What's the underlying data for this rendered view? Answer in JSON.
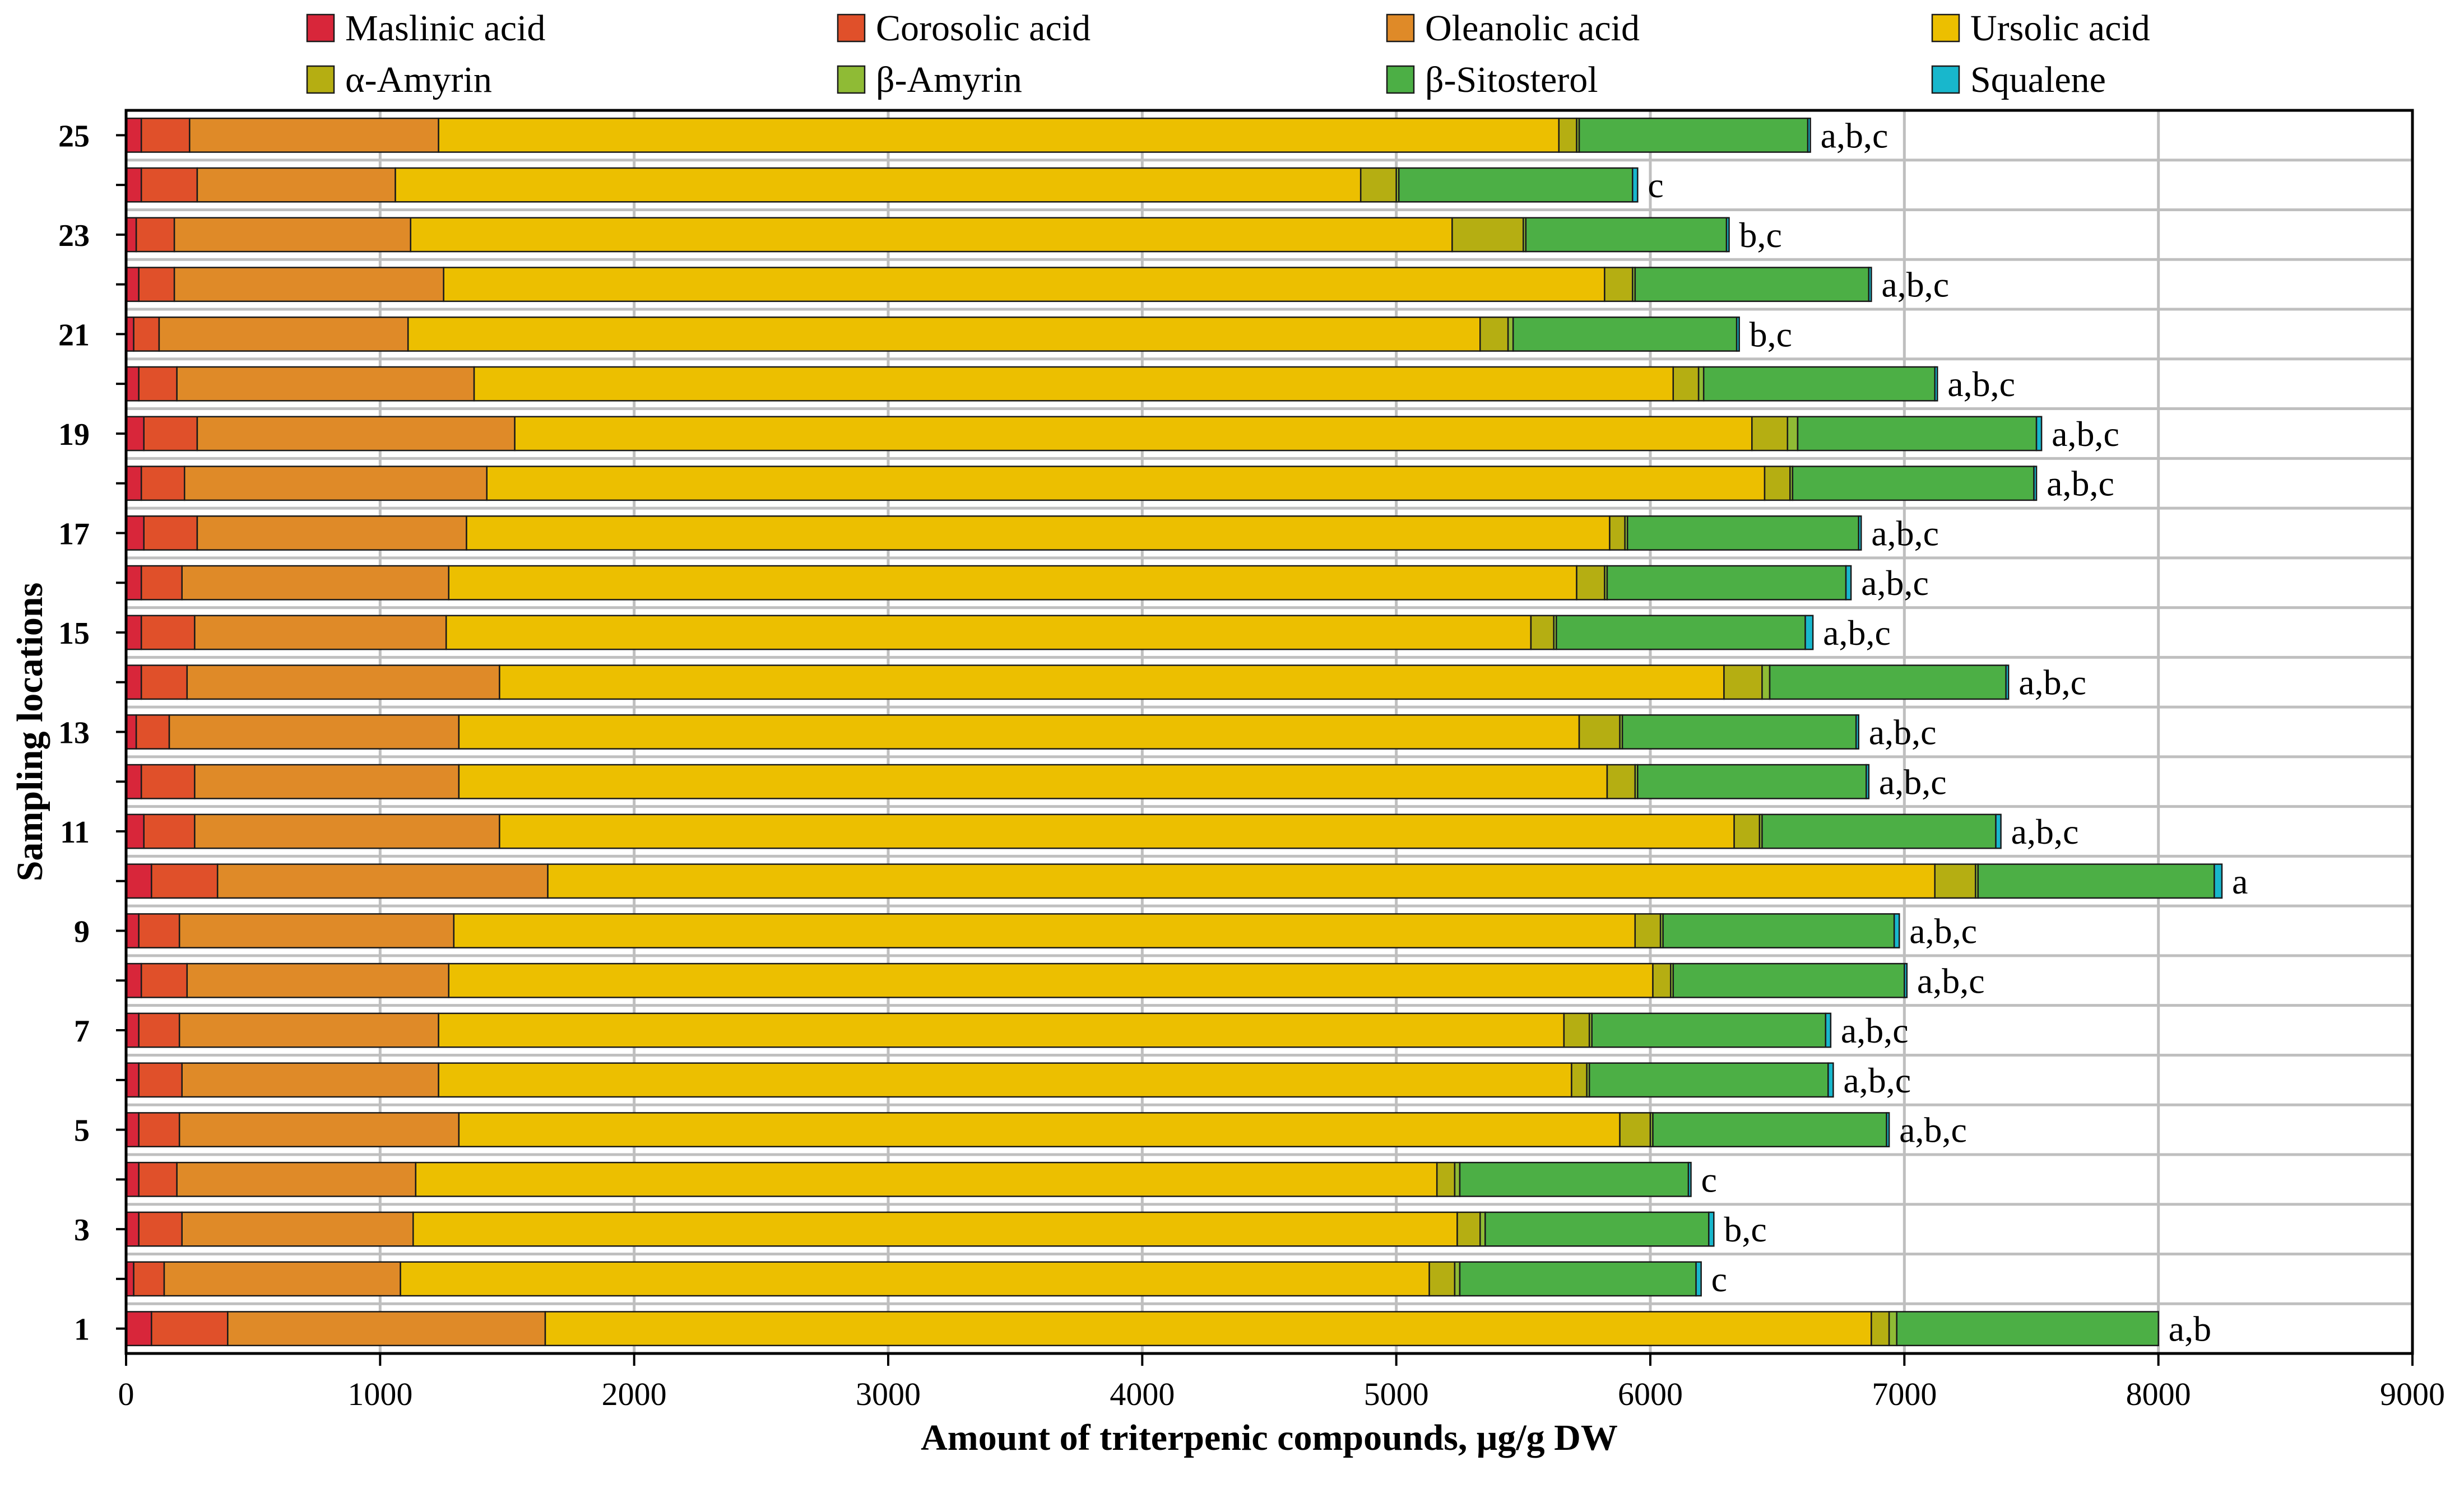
{
  "chart_data": {
    "type": "bar",
    "orientation": "horizontal",
    "stacked": true,
    "xlabel": "Amount of triterpenic compounds, μg/g DW",
    "ylabel": "Sampling locations",
    "xlim": [
      0,
      9000
    ],
    "x_ticks": [
      "0",
      "1000",
      "2000",
      "3000",
      "4000",
      "5000",
      "6000",
      "7000",
      "8000",
      "9000"
    ],
    "grid": "vertical",
    "legend_position": "top",
    "categories": [
      "1",
      "2",
      "3",
      "4",
      "5",
      "6",
      "7",
      "8",
      "9",
      "10",
      "11",
      "12",
      "13",
      "14",
      "15",
      "16",
      "17",
      "18",
      "19",
      "20",
      "21",
      "22",
      "23",
      "24",
      "25"
    ],
    "y_tick_labels": [
      "1",
      "",
      "3",
      "",
      "5",
      "",
      "7",
      "",
      "9",
      "",
      "11",
      "",
      "13",
      "",
      "15",
      "",
      "17",
      "",
      "19",
      "",
      "21",
      "",
      "23",
      "",
      "25"
    ],
    "significance_labels": [
      "a,b",
      "c",
      "b,c",
      "c",
      "a,b,c",
      "a,b,c",
      "a,b,c",
      "a,b,c",
      "a,b,c",
      "a",
      "a,b,c",
      "a,b,c",
      "a,b,c",
      "a,b,c",
      "a,b,c",
      "a,b,c",
      "a,b,c",
      "a,b,c",
      "a,b,c",
      "a,b,c",
      "b,c",
      "a,b,c",
      "b,c",
      "c",
      "a,b,c"
    ],
    "series": [
      {
        "name": "Maslinic acid",
        "color": "#d8263a",
        "values": [
          100,
          30,
          50,
          50,
          50,
          50,
          50,
          60,
          50,
          100,
          70,
          60,
          40,
          60,
          60,
          60,
          70,
          60,
          70,
          50,
          30,
          50,
          40,
          60,
          60
        ]
      },
      {
        "name": "Corosolic acid",
        "color": "#e0502a",
        "values": [
          300,
          120,
          170,
          150,
          160,
          170,
          160,
          180,
          160,
          260,
          200,
          210,
          130,
          180,
          210,
          160,
          210,
          170,
          210,
          150,
          100,
          140,
          150,
          220,
          190
        ]
      },
      {
        "name": "Oleanolic acid",
        "color": "#df8a28",
        "values": [
          1250,
          930,
          910,
          940,
          1100,
          1010,
          1020,
          1030,
          1080,
          1300,
          1200,
          1040,
          1140,
          1230,
          990,
          1050,
          1060,
          1190,
          1250,
          1170,
          980,
          1060,
          930,
          780,
          980
        ]
      },
      {
        "name": "Ursolic acid",
        "color": "#ecbf00",
        "values": [
          5220,
          4050,
          4110,
          4020,
          4570,
          4460,
          4430,
          4740,
          4650,
          5460,
          4860,
          4520,
          4410,
          4820,
          4270,
          4440,
          4500,
          5030,
          4870,
          4720,
          4220,
          4570,
          4100,
          3800,
          4410
        ]
      },
      {
        "name": "α-Amyrin",
        "color": "#b5ae12",
        "values": [
          70,
          100,
          90,
          70,
          120,
          60,
          100,
          70,
          100,
          160,
          100,
          110,
          160,
          150,
          90,
          110,
          60,
          100,
          140,
          100,
          110,
          110,
          280,
          140,
          70
        ]
      },
      {
        "name": "β-Amyrin",
        "color": "#8fbb35",
        "values": [
          30,
          20,
          20,
          20,
          10,
          10,
          10,
          10,
          10,
          10,
          10,
          10,
          10,
          30,
          10,
          10,
          10,
          10,
          40,
          20,
          20,
          10,
          10,
          10,
          10
        ]
      },
      {
        "name": "β-Sitosterol",
        "color": "#4caf45",
        "values": [
          1030,
          930,
          880,
          900,
          920,
          940,
          920,
          910,
          910,
          930,
          920,
          900,
          920,
          930,
          980,
          940,
          910,
          950,
          940,
          910,
          880,
          920,
          790,
          920,
          900
        ]
      },
      {
        "name": "Squalene",
        "color": "#18b7cc",
        "values": [
          0,
          20,
          20,
          10,
          10,
          20,
          20,
          10,
          20,
          30,
          20,
          10,
          10,
          10,
          30,
          20,
          10,
          10,
          20,
          10,
          10,
          10,
          10,
          20,
          10
        ]
      }
    ]
  }
}
